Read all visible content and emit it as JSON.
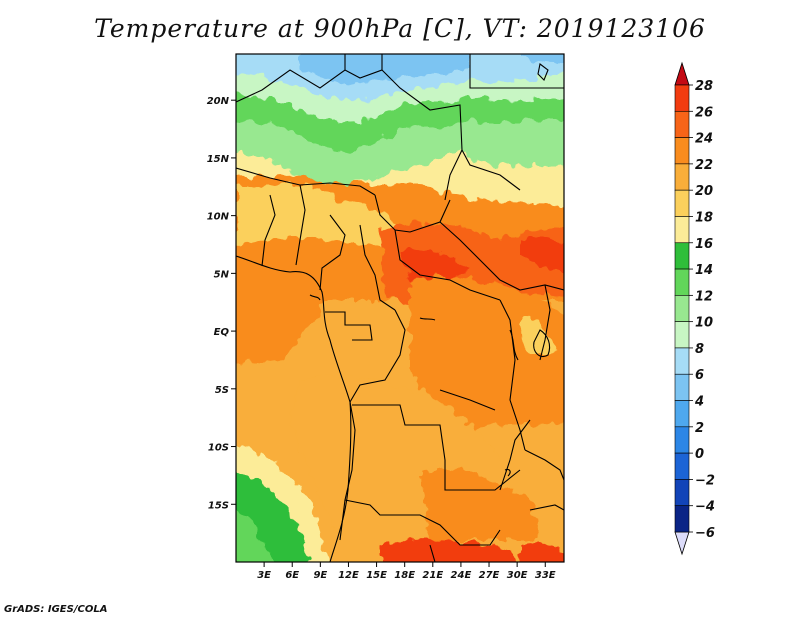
{
  "chart_data": {
    "type": "heatmap",
    "title": "Temperature at 900hPa [C], VT: 2019123106",
    "variable": "Temperature",
    "level": "900hPa",
    "units": "C",
    "valid_time": "2019123106",
    "lon_range": [
      0,
      35
    ],
    "lat_range": [
      -20,
      24
    ],
    "x_ticks": [
      "3E",
      "6E",
      "9E",
      "12E",
      "15E",
      "18E",
      "21E",
      "24E",
      "27E",
      "30E",
      "33E"
    ],
    "x_tick_values": [
      3,
      6,
      9,
      12,
      15,
      18,
      21,
      24,
      27,
      30,
      33
    ],
    "y_ticks": [
      "20N",
      "15N",
      "10N",
      "5N",
      "EQ",
      "5S",
      "10S",
      "15S"
    ],
    "y_tick_values": [
      20,
      15,
      10,
      5,
      0,
      -5,
      -10,
      -15
    ],
    "colorbar": {
      "levels": [
        28,
        26,
        24,
        22,
        20,
        18,
        16,
        14,
        12,
        10,
        8,
        6,
        4,
        2,
        0,
        -2,
        -4,
        -6
      ],
      "colors": [
        "#e8101c",
        "#f23c10",
        "#f76418",
        "#f98c1e",
        "#f9ae3a",
        "#fbd05c",
        "#fcec98",
        "#2fbe3a",
        "#62d65a",
        "#98e890",
        "#c8f6c4",
        "#a6dcf6",
        "#7cc4f2",
        "#4ea8ee",
        "#2c86e6",
        "#1c64d6",
        "#1244b8",
        "#0a2486",
        "#08105a"
      ],
      "min_arrow_color": "#dcdcfa",
      "max_arrow_color": "#c40a14"
    }
  },
  "footer": {
    "credit": "GrADS: IGES/COLA"
  }
}
